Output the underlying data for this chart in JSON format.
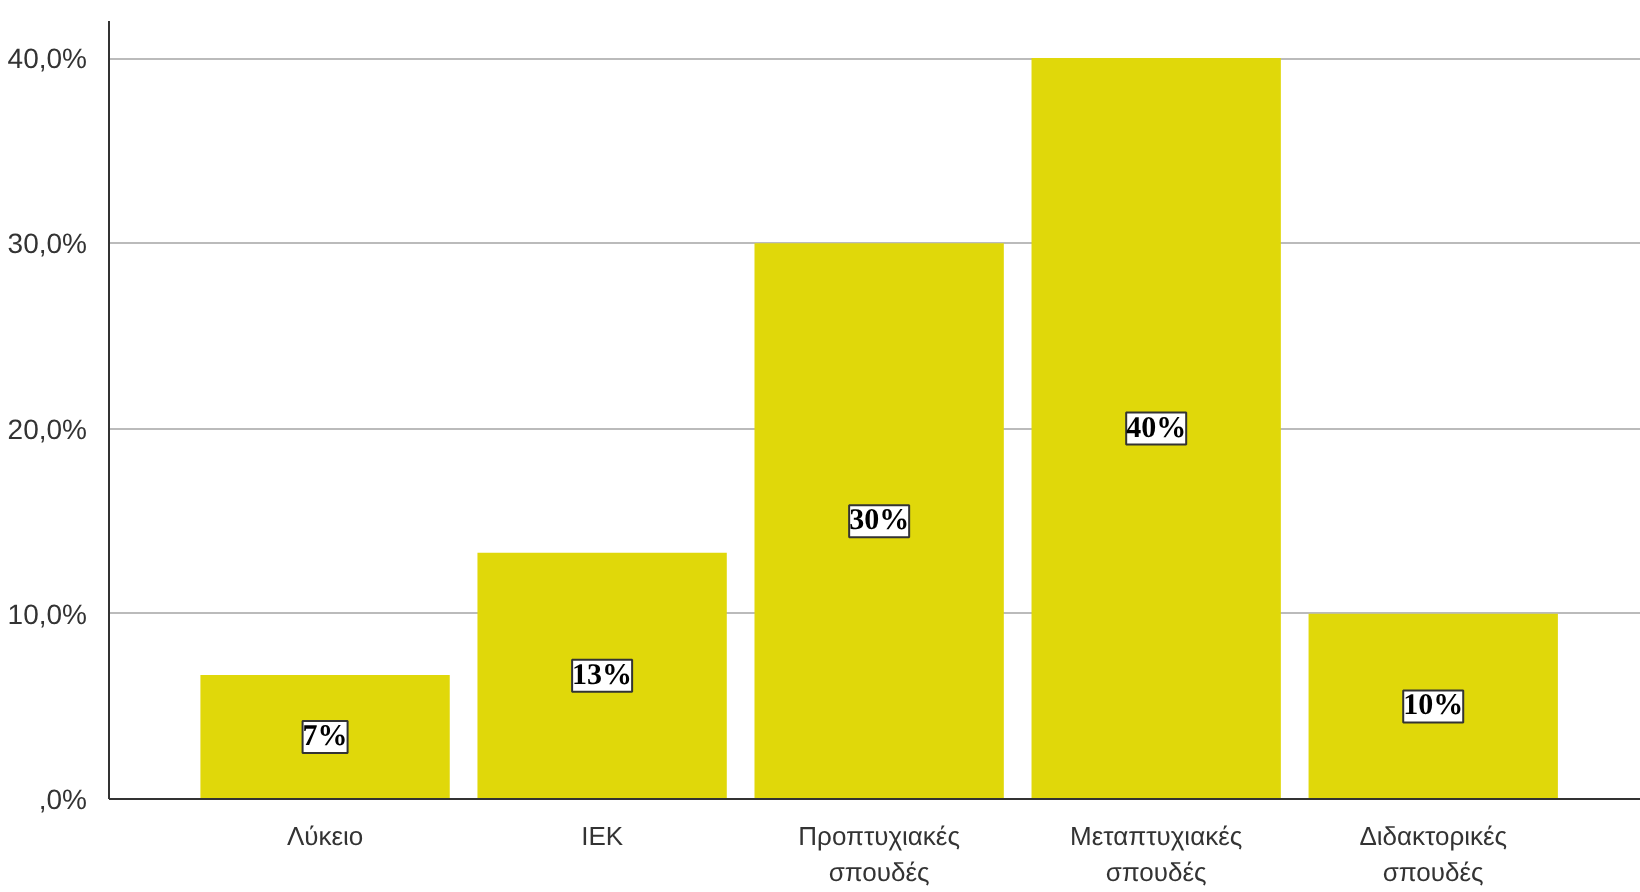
{
  "chart_data": {
    "type": "bar",
    "categories": [
      "Λύκειο",
      "ΙΕΚ",
      "Προπτυχιακές σπουδές",
      "Μεταπτυχιακές σπουδές",
      "Διδακτορικές σπουδές"
    ],
    "values": [
      6.7,
      13.3,
      30,
      40,
      10
    ],
    "color": "#e0d80a",
    "value_labels": [
      "7%",
      "13%",
      "30%",
      "40%",
      "10%"
    ],
    "ylim": [
      0,
      42
    ],
    "yticks": [
      {
        "value": 0,
        "label": ",0%"
      },
      {
        "value": 10,
        "label": "10,0%"
      },
      {
        "value": 20,
        "label": "20,0%"
      },
      {
        "value": 30,
        "label": "30,0%"
      },
      {
        "value": 40,
        "label": "40,0%"
      }
    ],
    "grid": "y"
  }
}
